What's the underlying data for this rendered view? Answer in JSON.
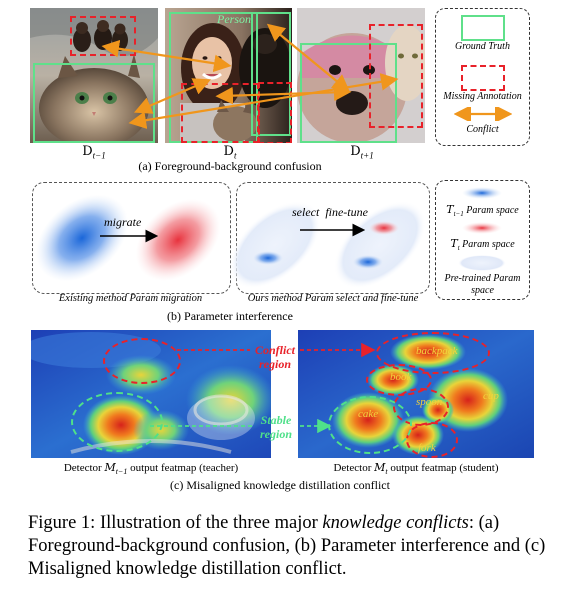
{
  "panel_a": {
    "labels": {
      "prev": "D",
      "prev_sub": "t−1",
      "cur": "D",
      "cur_sub": "t",
      "next": "D",
      "next_sub": "t+1"
    },
    "person_label": "Person",
    "caption": "(a) Foreground-background confusion",
    "legend": {
      "ground_truth": "Ground Truth",
      "missing": "Missing Annotation",
      "conflict": "Conflict"
    },
    "colors": {
      "ground_truth": "#5fe08a",
      "missing": "#e8222a",
      "conflict": "#f0961c"
    }
  },
  "panel_b": {
    "migrate": "migrate",
    "select": "select  fine-tune",
    "left_caption": "Existing method Param migration",
    "right_caption": "Ours method Param select and fine-tune",
    "caption": "(b) Parameter interference",
    "legend": {
      "prev_sym": "T",
      "prev_sub": "t−1",
      "prev_text": "Param space",
      "cur_sym": "T",
      "cur_sub": "t",
      "cur_text": "Param space",
      "pre_line1": "Pre-trained Param",
      "pre_line2": "space"
    }
  },
  "panel_c": {
    "conflict_line1": "Conflict",
    "conflict_line2": "region",
    "stable_line1": "Stable",
    "stable_line2": "region",
    "words": {
      "backpack": "backpack",
      "book": "book",
      "spoon": "spoon",
      "cup": "cup",
      "cake": "cake",
      "fork": "fork"
    },
    "left_caption_pre": "Detector ",
    "left_caption_sym": "M",
    "left_caption_sub": "t−1",
    "left_caption_post": " output featmap (teacher)",
    "right_caption_pre": "Detector ",
    "right_caption_sym": "M",
    "right_caption_sub": "t",
    "right_caption_post": " output featmap  (student)",
    "caption": "(c) Misaligned knowledge distillation conflict"
  },
  "figure_caption": {
    "prefix": "Figure 1: Illustration of the three major ",
    "emphasis": "knowledge conflicts",
    "suffix": ": (a) Foreground-background confusion, (b) Parameter interference and (c) Misaligned knowledge distillation conflict."
  }
}
